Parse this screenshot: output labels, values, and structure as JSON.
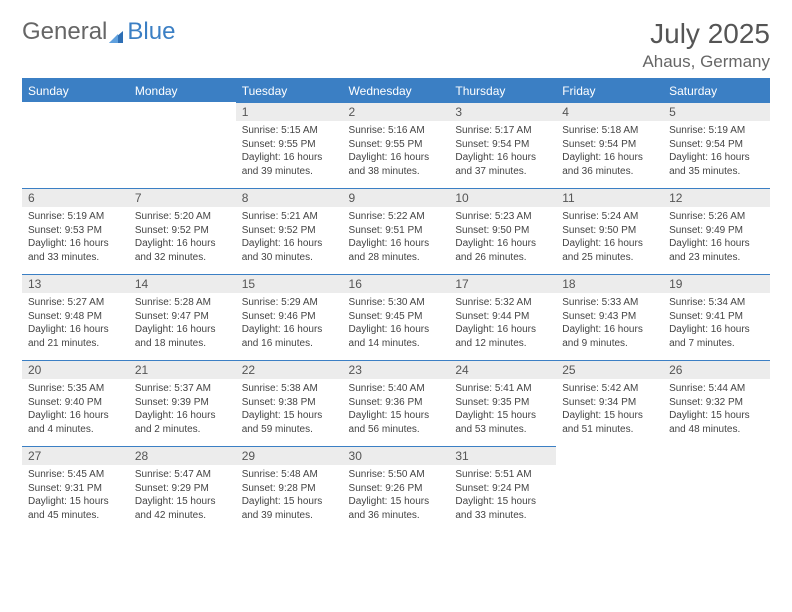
{
  "brand": {
    "general": "General",
    "blue": "Blue"
  },
  "title": {
    "month": "July 2025",
    "location": "Ahaus, Germany"
  },
  "colors": {
    "accent": "#3b7fc4",
    "daybar": "#ececec",
    "text": "#444"
  },
  "weekdays": [
    "Sunday",
    "Monday",
    "Tuesday",
    "Wednesday",
    "Thursday",
    "Friday",
    "Saturday"
  ],
  "labels": {
    "sunrise": "Sunrise: ",
    "sunset": "Sunset: ",
    "daylight_prefix": "Daylight: ",
    "hours_and": " hours and ",
    "minutes_suffix": " minutes."
  },
  "startOffset": 2,
  "days": [
    {
      "n": 1,
      "sr": "5:15 AM",
      "ss": "9:55 PM",
      "dh": 16,
      "dm": 39
    },
    {
      "n": 2,
      "sr": "5:16 AM",
      "ss": "9:55 PM",
      "dh": 16,
      "dm": 38
    },
    {
      "n": 3,
      "sr": "5:17 AM",
      "ss": "9:54 PM",
      "dh": 16,
      "dm": 37
    },
    {
      "n": 4,
      "sr": "5:18 AM",
      "ss": "9:54 PM",
      "dh": 16,
      "dm": 36
    },
    {
      "n": 5,
      "sr": "5:19 AM",
      "ss": "9:54 PM",
      "dh": 16,
      "dm": 35
    },
    {
      "n": 6,
      "sr": "5:19 AM",
      "ss": "9:53 PM",
      "dh": 16,
      "dm": 33
    },
    {
      "n": 7,
      "sr": "5:20 AM",
      "ss": "9:52 PM",
      "dh": 16,
      "dm": 32
    },
    {
      "n": 8,
      "sr": "5:21 AM",
      "ss": "9:52 PM",
      "dh": 16,
      "dm": 30
    },
    {
      "n": 9,
      "sr": "5:22 AM",
      "ss": "9:51 PM",
      "dh": 16,
      "dm": 28
    },
    {
      "n": 10,
      "sr": "5:23 AM",
      "ss": "9:50 PM",
      "dh": 16,
      "dm": 26
    },
    {
      "n": 11,
      "sr": "5:24 AM",
      "ss": "9:50 PM",
      "dh": 16,
      "dm": 25
    },
    {
      "n": 12,
      "sr": "5:26 AM",
      "ss": "9:49 PM",
      "dh": 16,
      "dm": 23
    },
    {
      "n": 13,
      "sr": "5:27 AM",
      "ss": "9:48 PM",
      "dh": 16,
      "dm": 21
    },
    {
      "n": 14,
      "sr": "5:28 AM",
      "ss": "9:47 PM",
      "dh": 16,
      "dm": 18
    },
    {
      "n": 15,
      "sr": "5:29 AM",
      "ss": "9:46 PM",
      "dh": 16,
      "dm": 16
    },
    {
      "n": 16,
      "sr": "5:30 AM",
      "ss": "9:45 PM",
      "dh": 16,
      "dm": 14
    },
    {
      "n": 17,
      "sr": "5:32 AM",
      "ss": "9:44 PM",
      "dh": 16,
      "dm": 12
    },
    {
      "n": 18,
      "sr": "5:33 AM",
      "ss": "9:43 PM",
      "dh": 16,
      "dm": 9
    },
    {
      "n": 19,
      "sr": "5:34 AM",
      "ss": "9:41 PM",
      "dh": 16,
      "dm": 7
    },
    {
      "n": 20,
      "sr": "5:35 AM",
      "ss": "9:40 PM",
      "dh": 16,
      "dm": 4
    },
    {
      "n": 21,
      "sr": "5:37 AM",
      "ss": "9:39 PM",
      "dh": 16,
      "dm": 2
    },
    {
      "n": 22,
      "sr": "5:38 AM",
      "ss": "9:38 PM",
      "dh": 15,
      "dm": 59
    },
    {
      "n": 23,
      "sr": "5:40 AM",
      "ss": "9:36 PM",
      "dh": 15,
      "dm": 56
    },
    {
      "n": 24,
      "sr": "5:41 AM",
      "ss": "9:35 PM",
      "dh": 15,
      "dm": 53
    },
    {
      "n": 25,
      "sr": "5:42 AM",
      "ss": "9:34 PM",
      "dh": 15,
      "dm": 51
    },
    {
      "n": 26,
      "sr": "5:44 AM",
      "ss": "9:32 PM",
      "dh": 15,
      "dm": 48
    },
    {
      "n": 27,
      "sr": "5:45 AM",
      "ss": "9:31 PM",
      "dh": 15,
      "dm": 45
    },
    {
      "n": 28,
      "sr": "5:47 AM",
      "ss": "9:29 PM",
      "dh": 15,
      "dm": 42
    },
    {
      "n": 29,
      "sr": "5:48 AM",
      "ss": "9:28 PM",
      "dh": 15,
      "dm": 39
    },
    {
      "n": 30,
      "sr": "5:50 AM",
      "ss": "9:26 PM",
      "dh": 15,
      "dm": 36
    },
    {
      "n": 31,
      "sr": "5:51 AM",
      "ss": "9:24 PM",
      "dh": 15,
      "dm": 33
    }
  ]
}
